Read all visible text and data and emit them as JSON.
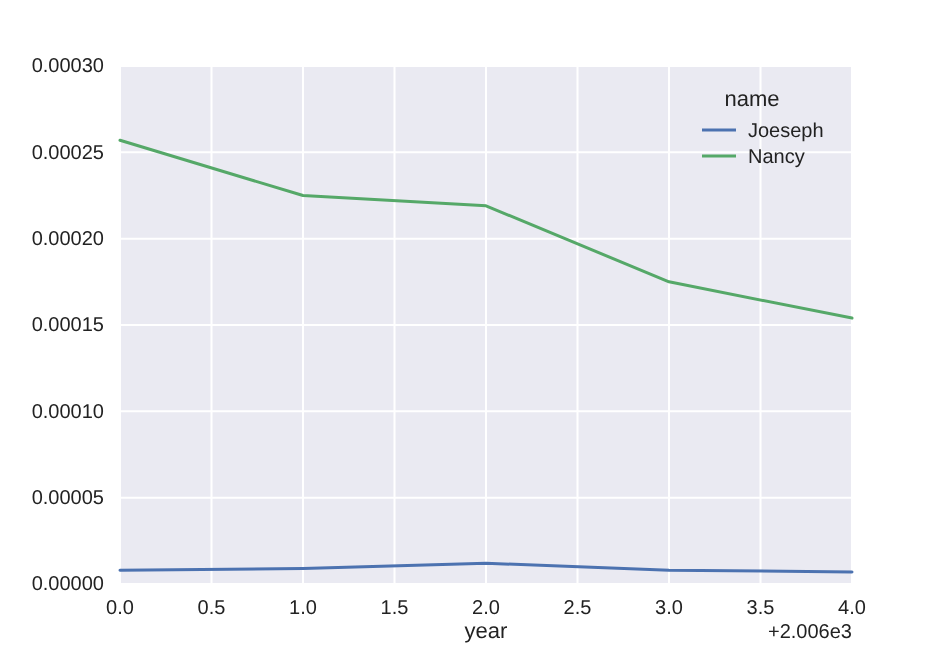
{
  "chart_data": {
    "type": "line",
    "xlabel": "year",
    "legend_title": "name",
    "annotations": [
      "+2.006e3"
    ],
    "x": [
      0,
      1,
      2,
      3,
      4
    ],
    "series": [
      {
        "name": "Joeseph",
        "color": "#4c72b0",
        "values": [
          8e-06,
          9e-06,
          1.2e-05,
          8e-06,
          7e-06
        ]
      },
      {
        "name": "Nancy",
        "color": "#55a868",
        "values": [
          0.000257,
          0.000225,
          0.000219,
          0.000175,
          0.000154
        ]
      }
    ],
    "xlim": [
      0,
      4
    ],
    "xticks": [
      {
        "value": 0,
        "label": "0.0"
      },
      {
        "value": 0.5,
        "label": "0.5"
      },
      {
        "value": 1,
        "label": "1.0"
      },
      {
        "value": 1.5,
        "label": "1.5"
      },
      {
        "value": 2,
        "label": "2.0"
      },
      {
        "value": 2.5,
        "label": "2.5"
      },
      {
        "value": 3,
        "label": "3.0"
      },
      {
        "value": 3.5,
        "label": "3.5"
      },
      {
        "value": 4,
        "label": "4.0"
      }
    ],
    "ylim": [
      0,
      0.0003
    ],
    "yticks": [
      {
        "value": 0,
        "label": "0.00000"
      },
      {
        "value": 5e-05,
        "label": "0.00005"
      },
      {
        "value": 0.0001,
        "label": "0.00010"
      },
      {
        "value": 0.00015,
        "label": "0.00015"
      },
      {
        "value": 0.0002,
        "label": "0.00020"
      },
      {
        "value": 0.00025,
        "label": "0.00025"
      },
      {
        "value": 0.0003,
        "label": "0.00030"
      }
    ],
    "grid": true,
    "legend": "top right"
  }
}
